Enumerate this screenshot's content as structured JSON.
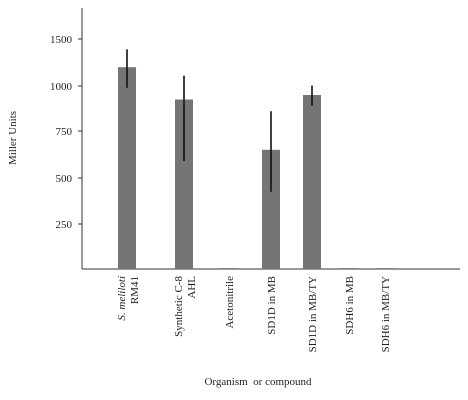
{
  "chart_data": {
    "type": "bar",
    "xlabel": "Organism  or compound",
    "ylabel": "Miller Units",
    "y_ticks": [
      "250",
      "500",
      "750",
      "1000",
      "1500"
    ],
    "categories": [
      {
        "label": "S. meliloti RM41",
        "lines": [
          "S. meliloti",
          "RM41"
        ],
        "italic_first_line": true
      },
      {
        "label": "Synthetic C-8 AHL",
        "lines": [
          "Synthetic C-8",
          "AHL"
        ],
        "italic_first_line": false
      },
      {
        "label": "Acetonitrile",
        "lines": [
          "Acetonitrile"
        ],
        "italic_first_line": false
      },
      {
        "label": "SD1D in MB",
        "lines": [
          "SD1D in MB"
        ],
        "italic_first_line": false
      },
      {
        "label": "SD1D in MB/TY",
        "lines": [
          "SD1D in MB/TY"
        ],
        "italic_first_line": false
      },
      {
        "label": "SDH6 in MB",
        "lines": [
          "SDH6 in MB"
        ],
        "italic_first_line": false
      },
      {
        "label": "SDH6 in MB/TY",
        "lines": [
          "SDH6 in MB/TY"
        ],
        "italic_first_line": false
      }
    ],
    "values": [
      1200,
      925,
      5,
      650,
      950,
      5,
      5
    ],
    "error_low": [
      990,
      590,
      5,
      425,
      890,
      5,
      5
    ],
    "error_high": [
      1390,
      1110,
      5,
      860,
      1005,
      5,
      5
    ],
    "bar_color": "#777574",
    "error_color": "#111111"
  }
}
